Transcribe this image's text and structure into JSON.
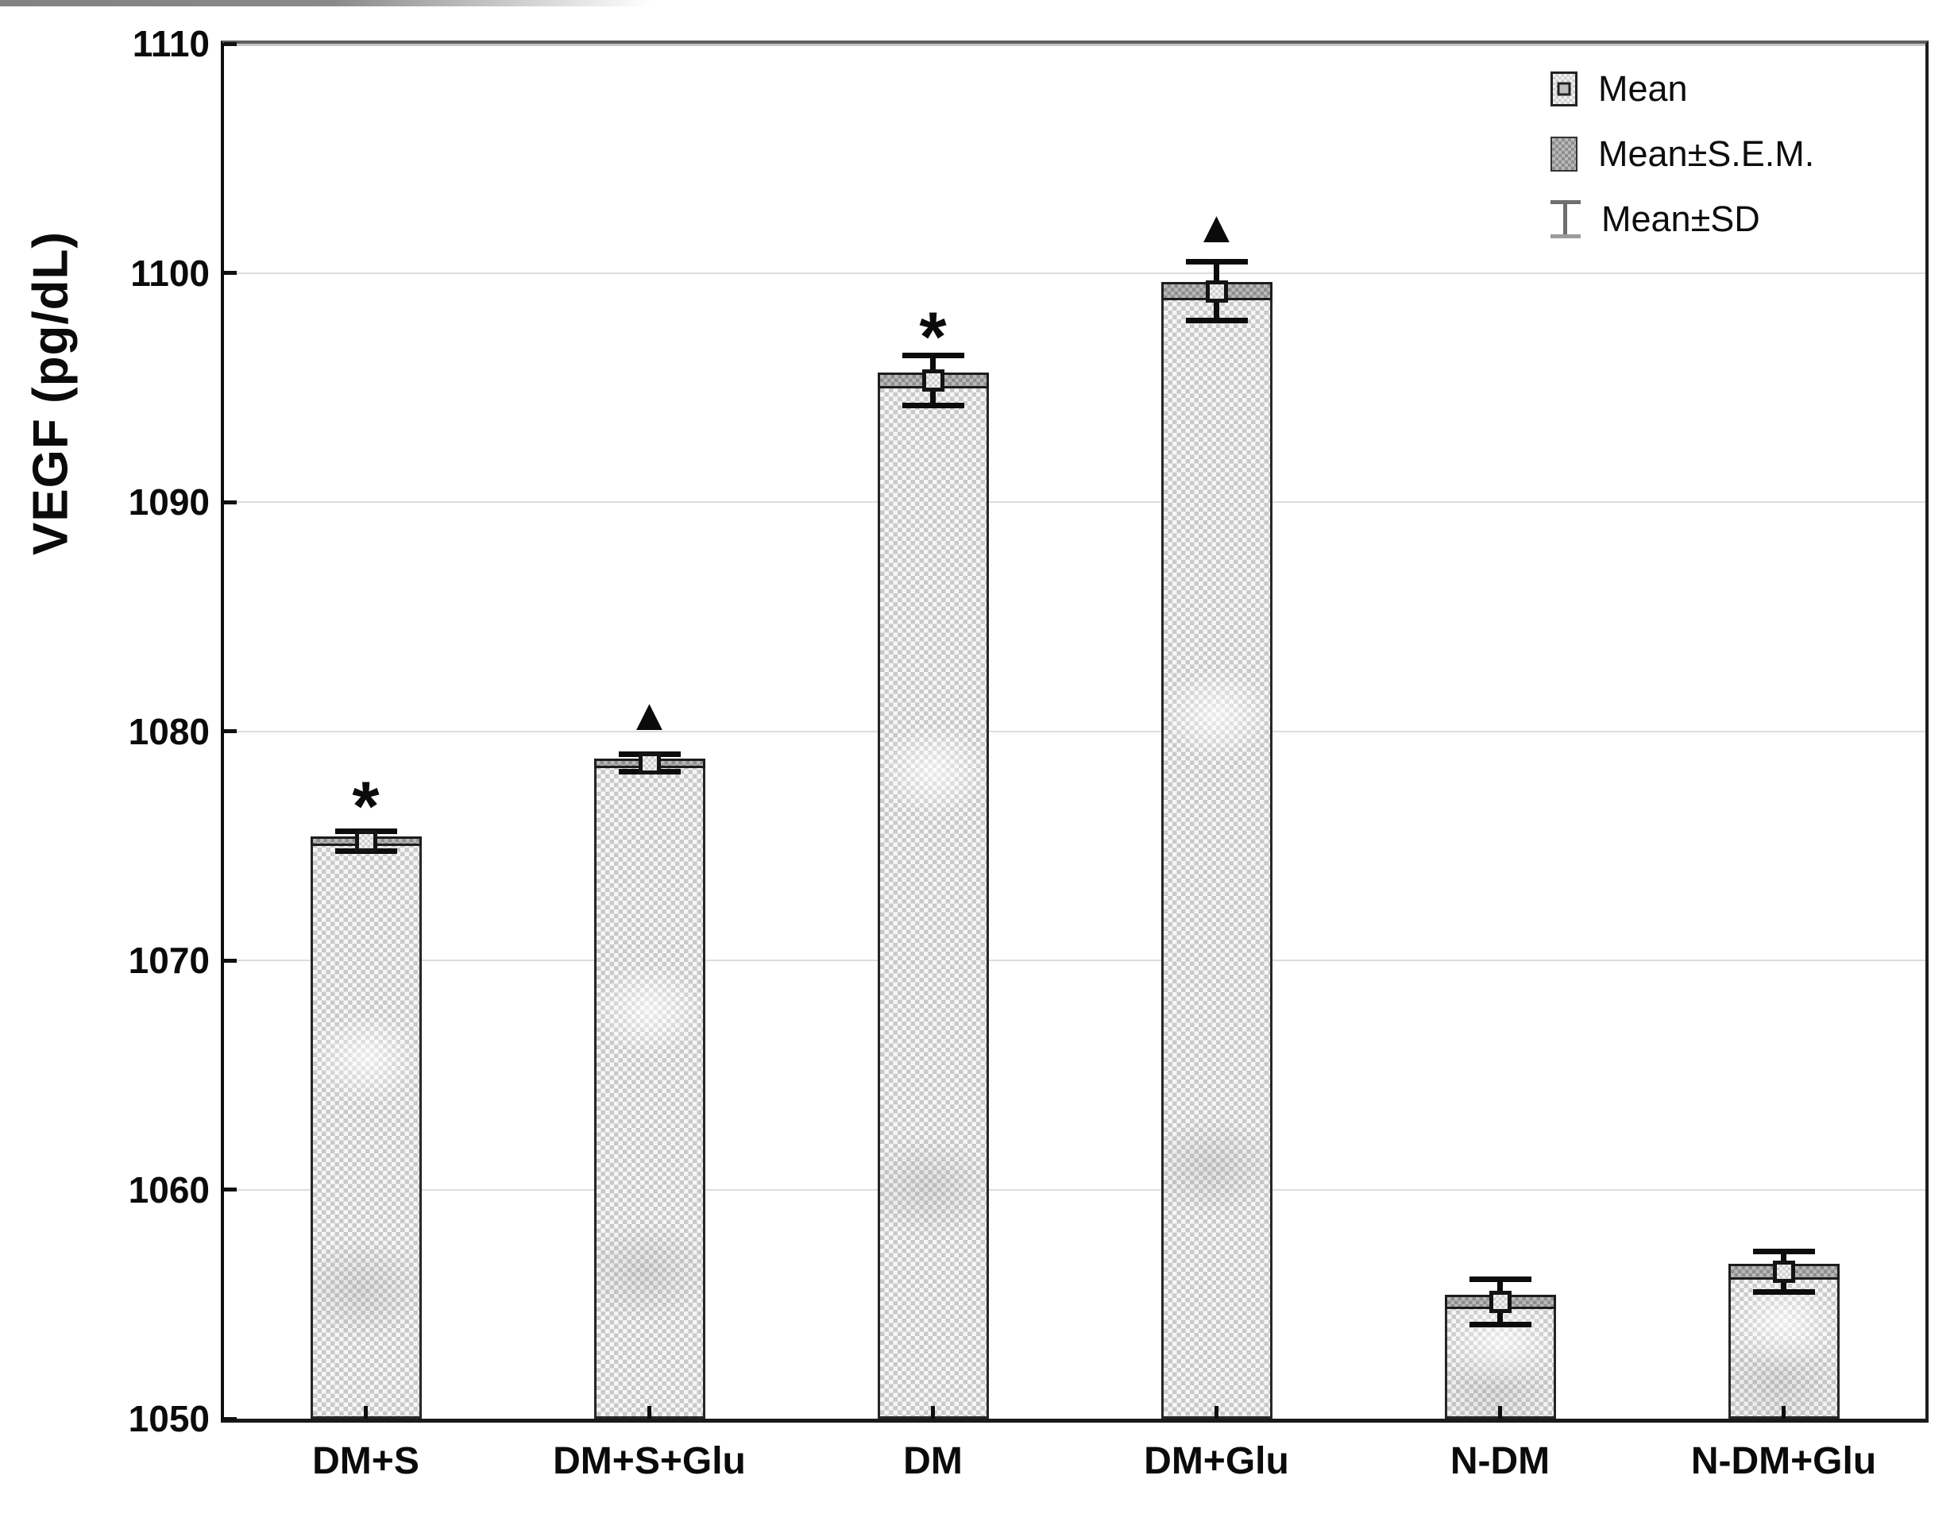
{
  "figure": {
    "y_axis_title": "VEGF (pg/dL)"
  },
  "legend": {
    "position": "top-right",
    "items": [
      {
        "swatch": "mean-square-marker",
        "label": "Mean"
      },
      {
        "swatch": "sem-shaded-box",
        "label": "Mean±S.E.M."
      },
      {
        "swatch": "sd-ibeam-whisker",
        "label": "Mean±SD"
      }
    ]
  },
  "chart_data": {
    "type": "bar",
    "title": "",
    "xlabel": "",
    "ylabel": "VEGF (pg/dL)",
    "ylim": [
      1050,
      1110
    ],
    "yticks": [
      1050,
      1060,
      1070,
      1080,
      1090,
      1100,
      1110
    ],
    "grid": "horizontal-light",
    "legend_position": "top-right",
    "categories": [
      "DM+S",
      "DM+S+Glu",
      "DM",
      "DM+Glu",
      "N-DM",
      "N-DM+Glu"
    ],
    "series": [
      {
        "name": "Mean",
        "values": [
          1075.2,
          1078.6,
          1095.3,
          1099.2,
          1055.1,
          1056.4
        ]
      },
      {
        "name": "S.E.M.",
        "values": [
          0.2,
          0.2,
          0.35,
          0.4,
          0.3,
          0.35
        ]
      },
      {
        "name": "SD",
        "values": [
          0.45,
          0.4,
          1.1,
          1.3,
          1.0,
          0.9
        ]
      }
    ],
    "bar_fill": "light-gray-halftone-checker",
    "sem_band_fill": "dark-gray-halftone-checker",
    "colors": {
      "bar_light": "#f6f6f6",
      "bar_check": "#c9c9c9",
      "sem_dark": "#b9b9b9",
      "outline": "#262626",
      "gridline": "#dcdcdc"
    },
    "annotations": [
      {
        "category": "DM+S",
        "symbol": "*",
        "value": 1077.3
      },
      {
        "category": "DM+S+Glu",
        "symbol": "▲",
        "value": 1080.8
      },
      {
        "category": "DM",
        "symbol": "*",
        "value": 1097.8
      },
      {
        "category": "DM+Glu",
        "symbol": "▲",
        "value": 1102.1
      }
    ]
  }
}
